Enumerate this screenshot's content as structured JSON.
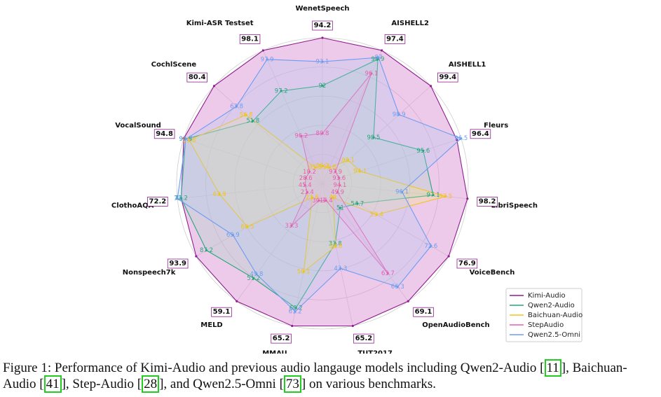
{
  "chart_data": {
    "type": "radar",
    "categories": [
      "WenetSpeech",
      "AISHELL2",
      "AISHELL1",
      "Fleurs",
      "LibriSpeech",
      "VoiceBench",
      "OpenAudioBench",
      "TUT2017",
      "MMAU",
      "MELD",
      "Nonspeech7k",
      "ClothoAQA",
      "VocalSound",
      "CochlScene",
      "Kimi-ASR Testset"
    ],
    "series": [
      {
        "name": "Kimi-Audio",
        "color": "#8e1f8e",
        "fill": "#d98ad0",
        "values": [
          94.2,
          97.4,
          99.4,
          96.4,
          98.2,
          76.9,
          69.1,
          65.2,
          65.2,
          59.1,
          93.9,
          72.2,
          94.8,
          80.4,
          98.1
        ]
      },
      {
        "name": "Qwen2-Audio",
        "color": "#23a67a",
        "fill": "#9fd8c2",
        "values": [
          92.0,
          96.9,
          98.5,
          95.6,
          97.1,
          54.7,
          51.0,
          33.8,
          60.2,
          51.2,
          87.2,
          72.2,
          93.8,
          51.8,
          97.2
        ]
      },
      {
        "name": "Baichuan-Audio",
        "color": "#f2c416",
        "fill": "#f7e38a",
        "values": [
          88.3,
          90.8,
          98.1,
          94.1,
          97.5,
          59.4,
          49.0,
          34.8,
          50.1,
          23.6,
          60.5,
          63.9,
          91.8,
          56.8,
          95.5
        ]
      },
      {
        "name": "StepAudio",
        "color": "#e85fb0",
        "fill": "#f4a8d4",
        "values": [
          89.8,
          96.1,
          97.9,
          93.6,
          94.1,
          49.9,
          63.7,
          17.4,
          30.3,
          33.3,
          21.4,
          45.4,
          28.6,
          10.2,
          96.2
        ]
      },
      {
        "name": "Qwen2.5-Omni",
        "color": "#6d9cf0",
        "fill": "#b3c9f5",
        "values": [
          93.1,
          97.0,
          98.9,
          96.5,
          96.1,
          72.6,
          66.3,
          43.3,
          61.2,
          49.8,
          69.9,
          73.0,
          93.7,
          63.8,
          97.9
        ]
      }
    ]
  },
  "caption": {
    "parts": [
      "Figure 1: Performance of Kimi-Audio and previous audio langauge models including Qwen2-Audio [",
      "], Baichuan-Audio [",
      "], Step-Audio [",
      "], and Qwen2.5-Omni [",
      "] on various benchmarks."
    ],
    "citations": [
      "11",
      "41",
      "28",
      "73"
    ]
  }
}
